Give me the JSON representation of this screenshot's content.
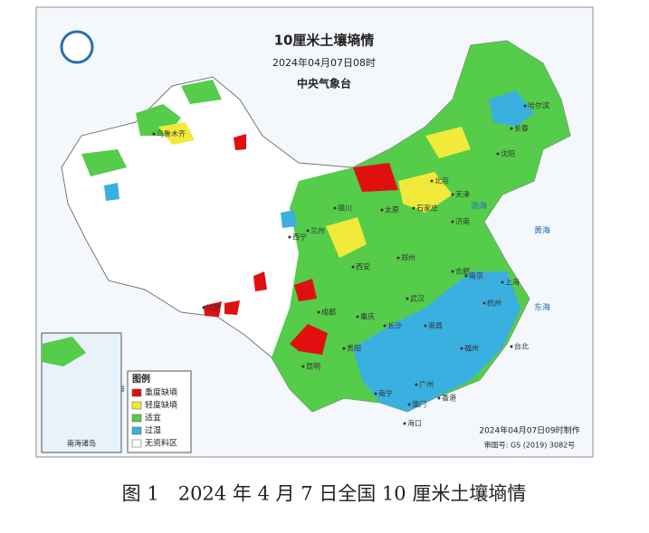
{
  "header": {
    "title": "10厘米土壤墒情",
    "time": "2024年04月07日08时",
    "agency": "中央气象台"
  },
  "legend": {
    "title": "图例",
    "items": [
      "重度缺墒",
      "轻度缺墒",
      "适宜",
      "过湿",
      "无资料区"
    ]
  },
  "cities": [
    "乌鲁木齐",
    "哈尔滨",
    "长春",
    "沈阳",
    "北京",
    "天津",
    "石家庄",
    "济南",
    "太原",
    "银川",
    "兰州",
    "西宁",
    "西安",
    "郑州",
    "南京",
    "上海",
    "合肥",
    "武汉",
    "杭州",
    "长沙",
    "南昌",
    "福州",
    "台北",
    "重庆",
    "成都",
    "贵阳",
    "昆明",
    "南宁",
    "广州",
    "香港",
    "澳门",
    "海口",
    "拉萨"
  ],
  "seas": [
    "渤海",
    "黄海",
    "东海",
    "南海"
  ],
  "inset": {
    "label": "南海诸岛"
  },
  "footer": {
    "made": "2024年04月07日09时制作",
    "approval": "审图号: GS (2019) 3082号"
  },
  "caption": "图 1　2024 年 4 月 7 日全国 10 厘米土壤墒情"
}
